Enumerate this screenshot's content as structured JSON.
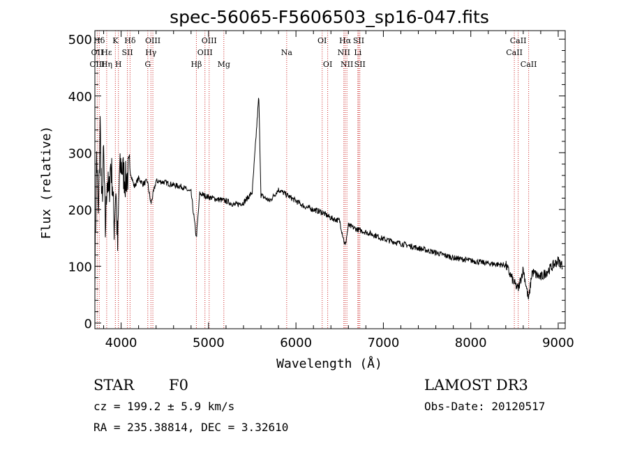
{
  "chart_data": {
    "type": "line",
    "title": "spec-56065-F5606503_sp16-047.fits",
    "xlabel": "Wavelength (Å)",
    "ylabel": "Flux (relative)",
    "xlim": [
      3700,
      9080
    ],
    "ylim": [
      -10,
      515
    ],
    "xticks": [
      4000,
      5000,
      6000,
      7000,
      8000,
      9000
    ],
    "yticks": [
      0,
      100,
      200,
      300,
      400,
      500
    ],
    "grid": false,
    "spectrum_anchors": [
      [
        3700,
        90
      ],
      [
        3720,
        300
      ],
      [
        3740,
        180
      ],
      [
        3760,
        350
      ],
      [
        3780,
        200
      ],
      [
        3800,
        300
      ],
      [
        3820,
        160
      ],
      [
        3840,
        260
      ],
      [
        3860,
        220
      ],
      [
        3880,
        280
      ],
      [
        3900,
        250
      ],
      [
        3920,
        170
      ],
      [
        3940,
        240
      ],
      [
        3960,
        130
      ],
      [
        3980,
        260
      ],
      [
        4000,
        280
      ],
      [
        4050,
        250
      ],
      [
        4100,
        270
      ],
      [
        4150,
        240
      ],
      [
        4200,
        255
      ],
      [
        4250,
        245
      ],
      [
        4300,
        250
      ],
      [
        4340,
        210
      ],
      [
        4400,
        250
      ],
      [
        4500,
        248
      ],
      [
        4600,
        243
      ],
      [
        4700,
        240
      ],
      [
        4800,
        230
      ],
      [
        4861,
        150
      ],
      [
        4900,
        228
      ],
      [
        5000,
        222
      ],
      [
        5100,
        218
      ],
      [
        5200,
        215
      ],
      [
        5300,
        208
      ],
      [
        5400,
        212
      ],
      [
        5500,
        230
      ],
      [
        5575,
        400
      ],
      [
        5600,
        225
      ],
      [
        5700,
        215
      ],
      [
        5800,
        235
      ],
      [
        5900,
        225
      ],
      [
        6000,
        215
      ],
      [
        6100,
        205
      ],
      [
        6200,
        200
      ],
      [
        6300,
        195
      ],
      [
        6400,
        185
      ],
      [
        6500,
        180
      ],
      [
        6563,
        135
      ],
      [
        6600,
        172
      ],
      [
        6700,
        165
      ],
      [
        6800,
        160
      ],
      [
        6900,
        155
      ],
      [
        7000,
        148
      ],
      [
        7200,
        140
      ],
      [
        7400,
        132
      ],
      [
        7600,
        124
      ],
      [
        7800,
        115
      ],
      [
        8000,
        110
      ],
      [
        8200,
        105
      ],
      [
        8400,
        102
      ],
      [
        8498,
        70
      ],
      [
        8542,
        60
      ],
      [
        8600,
        95
      ],
      [
        8662,
        40
      ],
      [
        8700,
        90
      ],
      [
        8800,
        80
      ],
      [
        8900,
        95
      ],
      [
        9000,
        110
      ],
      [
        9050,
        100
      ]
    ],
    "spectral_lines": [
      {
        "name": "Hδ",
        "wavelength": 3750,
        "row": 1
      },
      {
        "name": "OII",
        "wavelength": 3727,
        "row": 2
      },
      {
        "name": "OIII",
        "wavelength": 3727,
        "row": 3
      },
      {
        "name": "Hε",
        "wavelength": 3835,
        "row": 2
      },
      {
        "name": "Hη",
        "wavelength": 3835,
        "row": 3
      },
      {
        "name": "K",
        "wavelength": 3934,
        "row": 1
      },
      {
        "name": "H",
        "wavelength": 3969,
        "row": 3
      },
      {
        "name": "SII",
        "wavelength": 4072,
        "row": 2
      },
      {
        "name": "Hδ",
        "wavelength": 4102,
        "row": 1
      },
      {
        "name": "OIII",
        "wavelength": 4363,
        "row": 1
      },
      {
        "name": "Hγ",
        "wavelength": 4341,
        "row": 2
      },
      {
        "name": "G",
        "wavelength": 4305,
        "row": 3
      },
      {
        "name": "Hβ",
        "wavelength": 4861,
        "row": 3
      },
      {
        "name": "OIII",
        "wavelength": 4959,
        "row": 2
      },
      {
        "name": "OIII",
        "wavelength": 5007,
        "row": 1
      },
      {
        "name": "Mg",
        "wavelength": 5175,
        "row": 3
      },
      {
        "name": "Na",
        "wavelength": 5894,
        "row": 2
      },
      {
        "name": "OI",
        "wavelength": 6300,
        "row": 1
      },
      {
        "name": "OI",
        "wavelength": 6363,
        "row": 3
      },
      {
        "name": "Hα",
        "wavelength": 6563,
        "row": 1
      },
      {
        "name": "NII",
        "wavelength": 6548,
        "row": 2
      },
      {
        "name": "NII",
        "wavelength": 6583,
        "row": 3
      },
      {
        "name": "SII",
        "wavelength": 6717,
        "row": 1
      },
      {
        "name": "Li",
        "wavelength": 6708,
        "row": 2
      },
      {
        "name": "SII",
        "wavelength": 6731,
        "row": 3
      },
      {
        "name": "CaII",
        "wavelength": 8542,
        "row": 1
      },
      {
        "name": "CaII",
        "wavelength": 8498,
        "row": 2
      },
      {
        "name": "CaII",
        "wavelength": 8662,
        "row": 3
      }
    ]
  },
  "info": {
    "class": "STAR",
    "subclass": "F0",
    "survey": "LAMOST DR3",
    "cz": "cz = 199.2 ± 5.9 km/s",
    "obs_date": "Obs-Date: 20120517",
    "coords": "RA = 235.38814, DEC =   3.32610"
  },
  "colors": {
    "spectrum": "#000000",
    "line_marker": "#cc2222",
    "axis": "#000000"
  }
}
